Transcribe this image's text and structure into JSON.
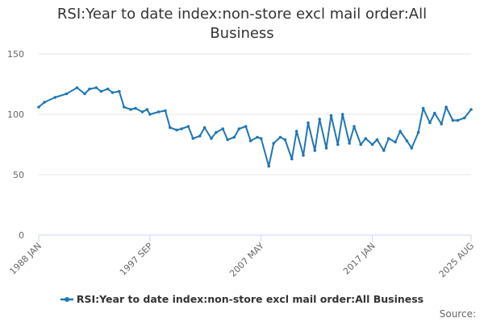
{
  "chart_data": {
    "type": "line",
    "title": "RSI:Year to date index:non-store excl mail order:All Business",
    "xlabel": "",
    "ylabel": "",
    "ylim": [
      0,
      150
    ],
    "yticks": [
      0,
      50,
      100,
      150
    ],
    "xlim": [
      "1988 JAN",
      "2025 AUG"
    ],
    "xticks": [
      "1988 JAN",
      "1997 SEP",
      "2007 MAY",
      "2017 JAN",
      "2025 AUG"
    ],
    "grid": true,
    "legend": "bottom-center",
    "series_color": "#1f77b4",
    "credits": "Source:",
    "series": [
      {
        "name": "RSI:Year to date index:non-store excl mail order:All Business",
        "x": [
          "1988-01",
          "1988-07",
          "1989-06",
          "1990-06",
          "1991-05",
          "1992-01",
          "1992-06",
          "1993-01",
          "1993-06",
          "1994-01",
          "1994-06",
          "1995-01",
          "1995-06",
          "1996-01",
          "1996-06",
          "1997-01",
          "1997-06",
          "1997-09",
          "1998-06",
          "1999-01",
          "1999-06",
          "2000-01",
          "2000-06",
          "2001-01",
          "2001-06",
          "2002-01",
          "2002-06",
          "2003-01",
          "2003-06",
          "2004-01",
          "2004-06",
          "2005-01",
          "2005-06",
          "2006-01",
          "2006-06",
          "2007-01",
          "2007-05",
          "2008-01",
          "2008-06",
          "2009-01",
          "2009-06",
          "2010-01",
          "2010-06",
          "2011-01",
          "2011-06",
          "2012-01",
          "2012-06",
          "2013-01",
          "2013-06",
          "2014-01",
          "2014-06",
          "2015-01",
          "2015-06",
          "2016-01",
          "2016-06",
          "2017-01",
          "2017-06",
          "2018-01",
          "2018-06",
          "2019-01",
          "2019-06",
          "2020-01",
          "2020-06",
          "2021-01",
          "2021-06",
          "2022-01",
          "2022-06",
          "2023-01",
          "2023-06",
          "2024-01",
          "2024-06",
          "2025-01",
          "2025-08"
        ],
        "values": [
          106,
          110,
          114,
          117,
          122,
          117,
          121,
          122,
          119,
          121,
          118,
          119,
          106,
          104,
          105,
          102,
          104,
          100,
          102,
          103,
          89,
          87,
          88,
          90,
          80,
          82,
          89,
          80,
          85,
          88,
          79,
          81,
          88,
          90,
          78,
          81,
          80,
          57,
          76,
          81,
          79,
          63,
          86,
          66,
          93,
          70,
          96,
          72,
          99,
          75,
          100,
          76,
          90,
          75,
          80,
          75,
          79,
          70,
          80,
          77,
          86,
          78,
          72,
          85,
          105,
          93,
          101,
          92,
          106,
          95,
          95,
          97,
          104
        ]
      }
    ]
  }
}
